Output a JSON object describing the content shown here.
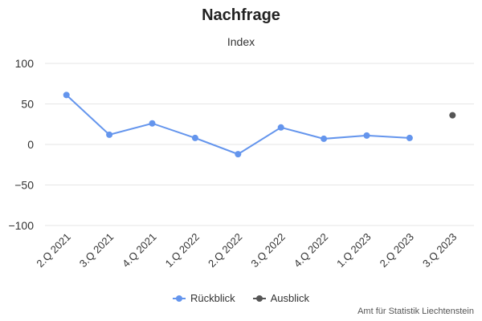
{
  "chart_data": {
    "type": "line",
    "title": "Nachfrage",
    "subtitle": "Index",
    "categories": [
      "2.Q 2021",
      "3.Q 2021",
      "4.Q 2021",
      "1.Q 2022",
      "2.Q 2022",
      "3.Q 2022",
      "4.Q 2022",
      "1.Q 2023",
      "2.Q 2023",
      "3.Q 2023"
    ],
    "series": [
      {
        "name": "Rückblick",
        "color": "#6495ed",
        "values": [
          61,
          12,
          26,
          8,
          -12,
          21,
          7,
          11,
          8,
          null
        ]
      },
      {
        "name": "Ausblick",
        "color": "#555555",
        "values": [
          null,
          null,
          null,
          null,
          null,
          null,
          null,
          null,
          null,
          36
        ]
      }
    ],
    "yticks": [
      100,
      50,
      0,
      -50,
      -100
    ],
    "ylim": [
      -100,
      100
    ],
    "grid": true,
    "legend_position": "bottom"
  },
  "credit": "Amt für Statistik Liechtenstein"
}
